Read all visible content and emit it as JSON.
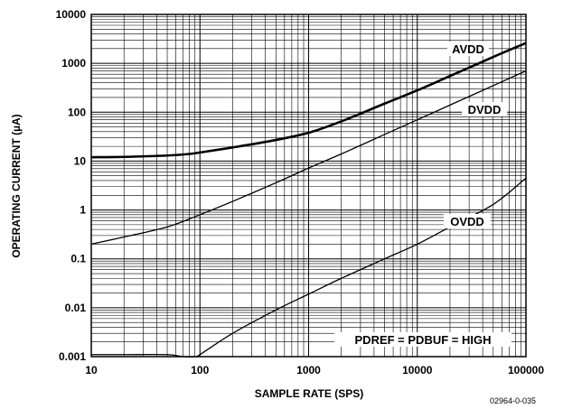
{
  "chart_data": {
    "type": "line",
    "xscale": "log",
    "yscale": "log",
    "xlabel": "SAMPLE RATE (SPS)",
    "ylabel": "OPERATING CURRENT (µA)",
    "xlim": [
      10,
      100000
    ],
    "ylim": [
      0.001,
      10000
    ],
    "grid": true,
    "x_ticks": [
      "10",
      "100",
      "1000",
      "10000",
      "100000"
    ],
    "y_ticks": [
      "0.001",
      "0.01",
      "0.1",
      "1",
      "10",
      "100",
      "1000",
      "10000"
    ],
    "series": [
      {
        "name": "AVDD",
        "x": [
          10,
          20,
          50,
          80,
          100,
          200,
          500,
          1000,
          2000,
          5000,
          10000,
          20000,
          50000,
          100000
        ],
        "y": [
          12,
          12.2,
          13,
          14,
          15,
          19,
          27,
          38,
          65,
          150,
          280,
          550,
          1350,
          2600
        ]
      },
      {
        "name": "DVDD",
        "x": [
          10,
          20,
          50,
          100,
          200,
          500,
          1000,
          2000,
          5000,
          10000,
          20000,
          50000,
          100000
        ],
        "y": [
          0.2,
          0.28,
          0.45,
          0.8,
          1.5,
          3.6,
          7.2,
          14,
          35,
          70,
          140,
          350,
          700
        ]
      },
      {
        "name": "OVDD",
        "x": [
          10,
          20,
          50,
          70,
          90,
          100,
          200,
          500,
          1000,
          2000,
          5000,
          10000,
          20000,
          50000,
          100000
        ],
        "y": [
          0.0011,
          0.0011,
          0.0011,
          0.001,
          0.001,
          0.0011,
          0.003,
          0.009,
          0.019,
          0.04,
          0.1,
          0.2,
          0.45,
          1.3,
          4.5
        ]
      }
    ],
    "annotations": [
      "PDREF = PDBUF = HIGH"
    ]
  },
  "figure_id": "02964-0-035"
}
